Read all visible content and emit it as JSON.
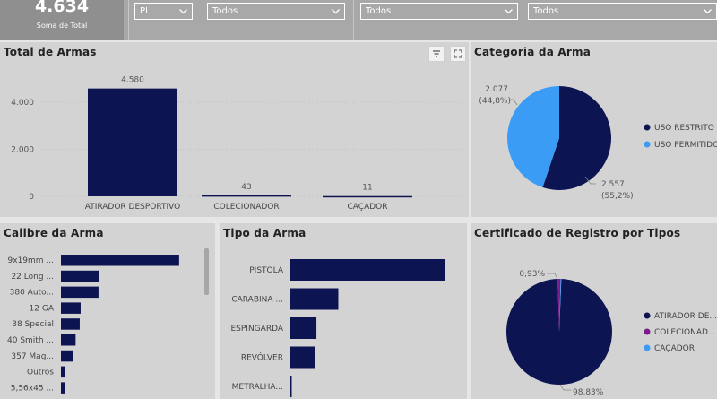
{
  "kpi": {
    "value": "4.634",
    "label": "Soma de Total"
  },
  "slicers": [
    {
      "value": "PI"
    },
    {
      "value": "Todos"
    },
    {
      "value": "Todos"
    },
    {
      "value": "Todos"
    }
  ],
  "colors": {
    "navy": "#0d1452",
    "light_blue": "#3b9cf5",
    "purple": "#7a1a8c"
  },
  "icons": [
    "chevron-down-icon",
    "filter-icon",
    "focus-mode-icon"
  ],
  "panels": {
    "total_armas": {
      "title": "Total de Armas"
    },
    "categoria": {
      "title": "Categoria da Arma"
    },
    "calibre": {
      "title": "Calibre da Arma"
    },
    "tipo": {
      "title": "Tipo da Arma"
    },
    "certificado": {
      "title": "Certificado de Registro por Tipos"
    }
  },
  "chart_data": [
    {
      "id": "total_armas",
      "type": "bar",
      "title": "Total de Armas",
      "categories": [
        "ATIRADOR DESPORTIVO",
        "COLECIONADOR",
        "CAÇADOR"
      ],
      "values": [
        4580,
        43,
        11
      ],
      "data_labels": [
        "4.580",
        "43",
        "11"
      ],
      "yticks": [
        "0",
        "2.000",
        "4.000"
      ],
      "ytick_values": [
        0,
        2000,
        4000
      ],
      "ylim": [
        0,
        5100
      ],
      "grid": true
    },
    {
      "id": "categoria",
      "type": "pie",
      "title": "Categoria da Arma",
      "categories": [
        "USO RESTRITO",
        "USO PERMITIDO"
      ],
      "values": [
        2557,
        2077
      ],
      "percent_labels": [
        "55,2%",
        "44,8%"
      ],
      "value_labels": [
        "2.557",
        "2.077"
      ],
      "legend_position": "right"
    },
    {
      "id": "calibre",
      "type": "bar",
      "orientation": "horizontal",
      "title": "Calibre da Arma",
      "categories": [
        "9x19mm ...",
        "22 Long ...",
        "380 Auto...",
        "12 GA",
        "38 Special",
        "40 Smith ...",
        "357 Mag...",
        "Outros",
        "5,56x45 ..."
      ],
      "values": [
        1290,
        420,
        410,
        215,
        205,
        160,
        130,
        45,
        40
      ],
      "xlim": [
        0,
        1350
      ]
    },
    {
      "id": "tipo",
      "type": "bar",
      "orientation": "horizontal",
      "title": "Tipo da Arma",
      "categories": [
        "PISTOLA",
        "CARABINA ...",
        "ESPINGARDA",
        "REVÓLVER",
        "METRALHA..."
      ],
      "values": [
        2620,
        810,
        440,
        410,
        15
      ],
      "xlim": [
        0,
        2620
      ]
    },
    {
      "id": "certificado",
      "type": "pie",
      "title": "Certificado de Registro por Tipos",
      "categories": [
        "ATIRADOR DE...",
        "COLECIONAD...",
        "CAÇADOR"
      ],
      "values": [
        98.83,
        0.93,
        0.24
      ],
      "percent_labels": [
        "98,83%",
        "0,93%"
      ],
      "legend_position": "right"
    }
  ]
}
